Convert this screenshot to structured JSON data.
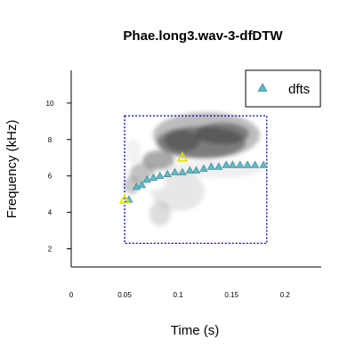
{
  "chart_data": {
    "type": "scatter",
    "title": "Phae.long3.wav-3-dfDTW",
    "xlabel": "Time (s)",
    "ylabel": "Frequency (kHz)",
    "xlim": [
      0,
      0.234
    ],
    "ylim": [
      1,
      11.8
    ],
    "xticks": [
      0,
      0.05,
      0.1,
      0.15,
      0.2
    ],
    "xtick_labels": [
      "0",
      "0.05",
      "0.1",
      "0.15",
      "0.2"
    ],
    "yticks": [
      2,
      4,
      6,
      8,
      10
    ],
    "ytick_labels": [
      "2",
      "4",
      "6",
      "8",
      "10"
    ],
    "legend": {
      "position": "top-right",
      "entries": [
        {
          "label": "dfts",
          "marker": "triangle",
          "color": "#5bb8c4"
        }
      ]
    },
    "selection_box": {
      "x": [
        0.05,
        0.183
      ],
      "y": [
        2.3,
        9.3
      ],
      "color": "#0000b0",
      "style": "dotted"
    },
    "series": [
      {
        "name": "dfts",
        "marker": "triangle",
        "color": "#5bb8c4",
        "x": [
          0.054,
          0.061,
          0.066,
          0.071,
          0.077,
          0.083,
          0.09,
          0.097,
          0.104,
          0.111,
          0.117,
          0.124,
          0.131,
          0.138,
          0.145,
          0.151,
          0.158,
          0.165,
          0.172,
          0.18
        ],
        "y": [
          4.7,
          5.4,
          5.5,
          5.8,
          5.9,
          6.0,
          6.1,
          6.2,
          6.2,
          6.3,
          6.3,
          6.4,
          6.5,
          6.5,
          6.6,
          6.6,
          6.6,
          6.6,
          6.6,
          6.6
        ]
      },
      {
        "name": "",
        "marker": "triangle",
        "color": "#e8e000",
        "x": [
          0.05,
          0.104
        ],
        "y": [
          4.7,
          7.0
        ]
      }
    ]
  }
}
